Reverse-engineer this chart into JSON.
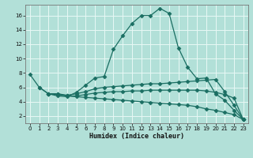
{
  "xlabel": "Humidex (Indice chaleur)",
  "bg_color": "#b2e0d8",
  "line_color": "#1a6e62",
  "grid_color": "#e8f8f5",
  "ylim": [
    1,
    17.5
  ],
  "xlim": [
    -0.5,
    23.5
  ],
  "yticks": [
    2,
    4,
    6,
    8,
    10,
    12,
    14,
    16
  ],
  "xticks": [
    0,
    1,
    2,
    3,
    4,
    5,
    6,
    7,
    8,
    9,
    10,
    11,
    12,
    13,
    14,
    15,
    16,
    17,
    18,
    19,
    20,
    21,
    22,
    23
  ],
  "line1_x": [
    0,
    1,
    2,
    3,
    4,
    5,
    6,
    7,
    8,
    9,
    10,
    11,
    12,
    13,
    14,
    15,
    16,
    17,
    18,
    19,
    20,
    21,
    22,
    23
  ],
  "line1_y": [
    7.8,
    6.0,
    5.1,
    4.8,
    4.7,
    5.3,
    6.3,
    7.3,
    7.5,
    11.3,
    13.2,
    14.9,
    16.0,
    16.0,
    17.0,
    16.3,
    11.5,
    8.8,
    7.2,
    7.3,
    5.1,
    4.2,
    2.8,
    1.5
  ],
  "line2_x": [
    1,
    2,
    3,
    4,
    5,
    6,
    7,
    8,
    9,
    10,
    11,
    12,
    13,
    14,
    15,
    16,
    17,
    18,
    19,
    20,
    21,
    22,
    23
  ],
  "line2_y": [
    6.0,
    5.1,
    5.1,
    4.9,
    5.1,
    5.4,
    5.8,
    6.0,
    6.1,
    6.2,
    6.3,
    6.4,
    6.5,
    6.5,
    6.6,
    6.7,
    6.8,
    6.9,
    7.0,
    7.1,
    5.4,
    3.5,
    1.5
  ],
  "line3_x": [
    2,
    3,
    4,
    5,
    6,
    7,
    8,
    9,
    10,
    11,
    12,
    13,
    14,
    15,
    16,
    17,
    18,
    19,
    20,
    21,
    22,
    23
  ],
  "line3_y": [
    5.1,
    5.1,
    4.8,
    4.8,
    5.0,
    5.2,
    5.3,
    5.4,
    5.4,
    5.5,
    5.5,
    5.6,
    5.6,
    5.6,
    5.6,
    5.6,
    5.6,
    5.5,
    5.3,
    5.0,
    4.5,
    1.5
  ],
  "line4_x": [
    2,
    3,
    4,
    5,
    6,
    7,
    8,
    9,
    10,
    11,
    12,
    13,
    14,
    15,
    16,
    17,
    18,
    19,
    20,
    21,
    22,
    23
  ],
  "line4_y": [
    5.1,
    5.0,
    4.8,
    4.7,
    4.6,
    4.5,
    4.4,
    4.3,
    4.2,
    4.1,
    4.0,
    3.9,
    3.8,
    3.7,
    3.6,
    3.5,
    3.3,
    3.0,
    2.8,
    2.5,
    2.2,
    1.5
  ]
}
